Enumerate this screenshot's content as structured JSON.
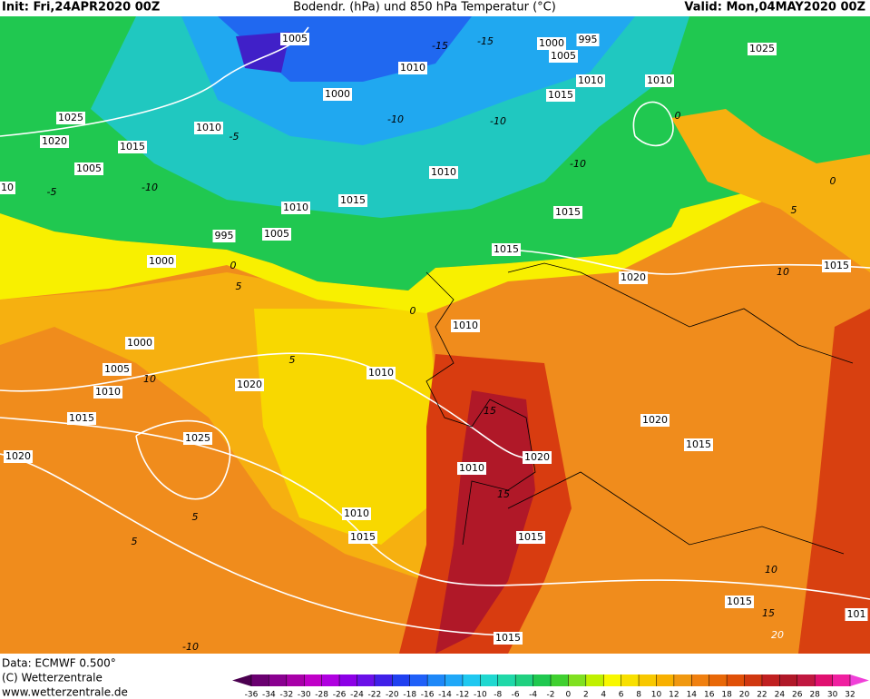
{
  "header": {
    "init": "Init: Fri,24APR2020 00Z",
    "title": "Bodendr. (hPa) und 850 hPa Temperatur (°C)",
    "valid": "Valid: Mon,04MAY2020 00Z"
  },
  "isobar_labels": [
    1005,
    1000,
    995,
    1005,
    1010,
    1025,
    1010,
    1010,
    1000,
    1015,
    1025,
    1010,
    1020,
    1015,
    1005,
    1010,
    10,
    1015,
    1010,
    1015,
    995,
    1005,
    1015,
    1000,
    1015,
    1020,
    1010,
    1000,
    1005,
    1010,
    1010,
    1020,
    1015,
    1020,
    1025,
    1015,
    1020,
    1020,
    1010,
    1010,
    1015,
    1015,
    1015,
    101,
    1015
  ],
  "isotherm_labels": [
    -15,
    -15,
    -10,
    -10,
    -5,
    0,
    -10,
    -5,
    -10,
    5,
    0,
    10,
    5,
    0,
    0,
    5,
    10,
    5,
    5,
    10,
    15,
    20,
    -10,
    15,
    15
  ],
  "footer": {
    "data": "Data: ECMWF  0.500°",
    "copyright": "(C) Wetterzentrale",
    "url": "www.wetterzentrale.de"
  },
  "colorbar": {
    "ticks": [
      -36,
      -34,
      -32,
      -30,
      -28,
      -26,
      -24,
      -22,
      -20,
      -18,
      -16,
      -14,
      -12,
      -10,
      -8,
      -6,
      -4,
      -2,
      0,
      2,
      4,
      6,
      8,
      10,
      12,
      14,
      16,
      18,
      20,
      22,
      24,
      26,
      28,
      30,
      32
    ],
    "colors": [
      "#4b0050",
      "#6a0070",
      "#8a0090",
      "#a800a8",
      "#c000c8",
      "#b000e0",
      "#8c00e6",
      "#6a10e8",
      "#4020e8",
      "#2040f0",
      "#2060f8",
      "#1e88f8",
      "#20a8f8",
      "#20c8f0",
      "#20d8d0",
      "#20d8a8",
      "#20d080",
      "#20c850",
      "#40d030",
      "#80e020",
      "#c0f000",
      "#f8f800",
      "#f8e000",
      "#f8c800",
      "#f8b000",
      "#f09810",
      "#f08010",
      "#e86808",
      "#e05008",
      "#d03810",
      "#c02020",
      "#b01828",
      "#c01840",
      "#e01070",
      "#f020a0",
      "#f040d8"
    ]
  }
}
